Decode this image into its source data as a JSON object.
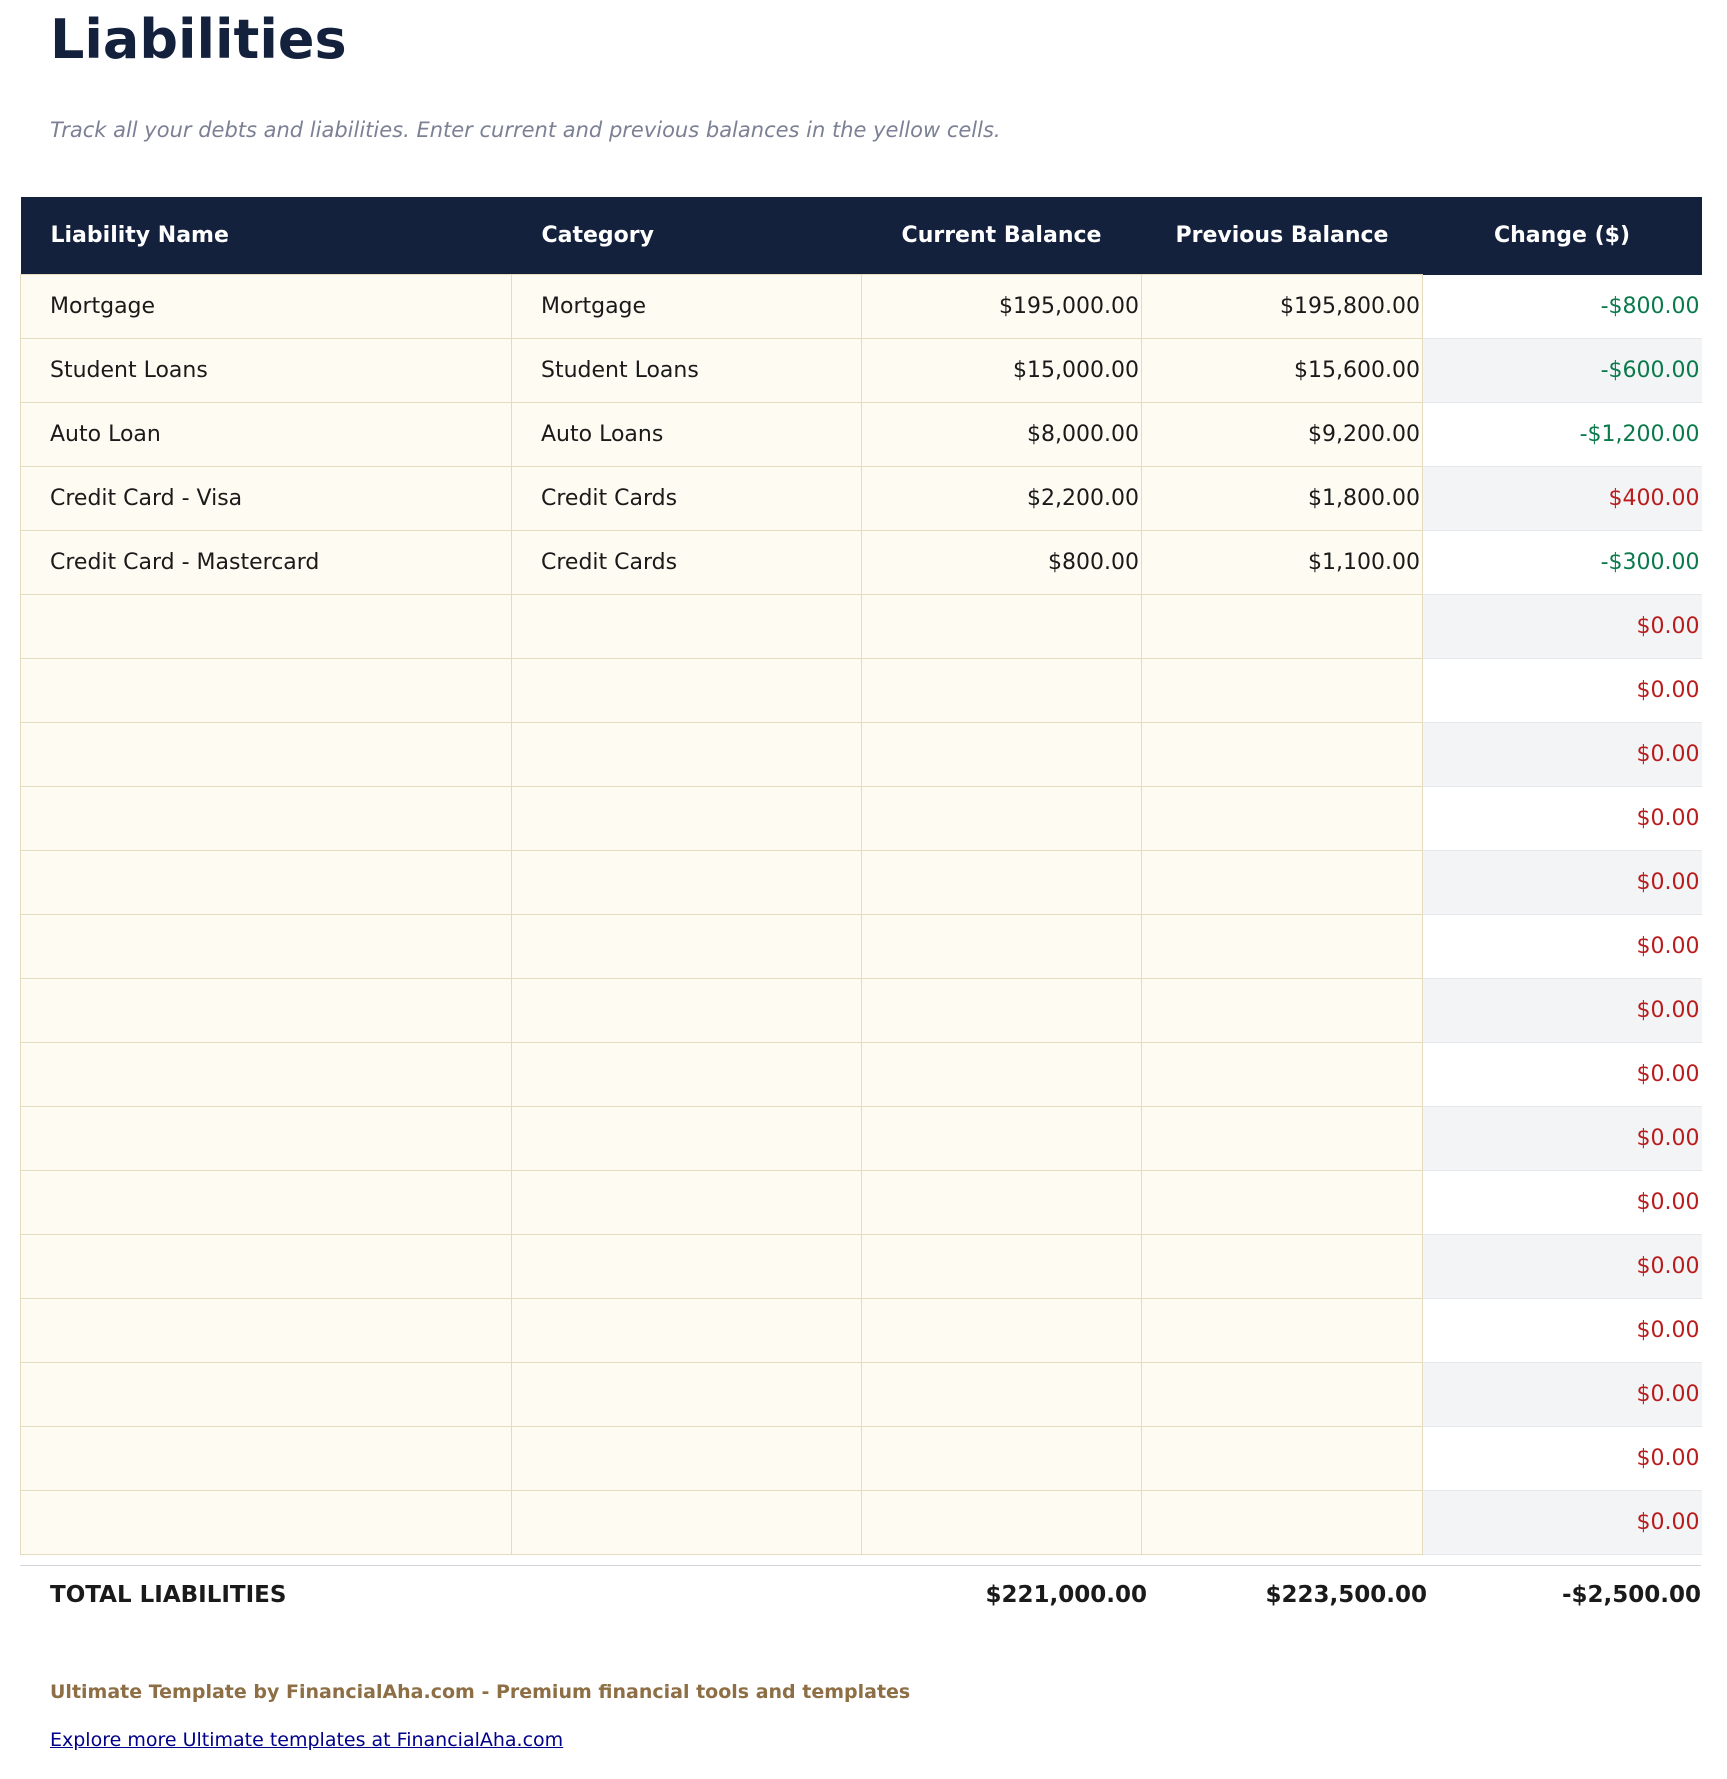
{
  "title": "Liabilities",
  "subtitle": "Track all your debts and liabilities. Enter current and previous balances in the yellow cells.",
  "columns": [
    "Liability Name",
    "Category",
    "Current Balance",
    "Previous Balance",
    "Change ($)"
  ],
  "rows": [
    {
      "name": "Mortgage",
      "category": "Mortgage",
      "current": "$195,000.00",
      "previous": "$195,800.00",
      "change": "-$800.00",
      "trend": "neg"
    },
    {
      "name": "Student Loans",
      "category": "Student Loans",
      "current": "$15,000.00",
      "previous": "$15,600.00",
      "change": "-$600.00",
      "trend": "neg"
    },
    {
      "name": "Auto Loan",
      "category": "Auto Loans",
      "current": "$8,000.00",
      "previous": "$9,200.00",
      "change": "-$1,200.00",
      "trend": "neg"
    },
    {
      "name": "Credit Card - Visa",
      "category": "Credit Cards",
      "current": "$2,200.00",
      "previous": "$1,800.00",
      "change": "$400.00",
      "trend": "pos"
    },
    {
      "name": "Credit Card - Mastercard",
      "category": "Credit Cards",
      "current": "$800.00",
      "previous": "$1,100.00",
      "change": "-$300.00",
      "trend": "neg"
    },
    {
      "name": "",
      "category": "",
      "current": "",
      "previous": "",
      "change": "$0.00",
      "trend": "pos"
    },
    {
      "name": "",
      "category": "",
      "current": "",
      "previous": "",
      "change": "$0.00",
      "trend": "pos"
    },
    {
      "name": "",
      "category": "",
      "current": "",
      "previous": "",
      "change": "$0.00",
      "trend": "pos"
    },
    {
      "name": "",
      "category": "",
      "current": "",
      "previous": "",
      "change": "$0.00",
      "trend": "pos"
    },
    {
      "name": "",
      "category": "",
      "current": "",
      "previous": "",
      "change": "$0.00",
      "trend": "pos"
    },
    {
      "name": "",
      "category": "",
      "current": "",
      "previous": "",
      "change": "$0.00",
      "trend": "pos"
    },
    {
      "name": "",
      "category": "",
      "current": "",
      "previous": "",
      "change": "$0.00",
      "trend": "pos"
    },
    {
      "name": "",
      "category": "",
      "current": "",
      "previous": "",
      "change": "$0.00",
      "trend": "pos"
    },
    {
      "name": "",
      "category": "",
      "current": "",
      "previous": "",
      "change": "$0.00",
      "trend": "pos"
    },
    {
      "name": "",
      "category": "",
      "current": "",
      "previous": "",
      "change": "$0.00",
      "trend": "pos"
    },
    {
      "name": "",
      "category": "",
      "current": "",
      "previous": "",
      "change": "$0.00",
      "trend": "pos"
    },
    {
      "name": "",
      "category": "",
      "current": "",
      "previous": "",
      "change": "$0.00",
      "trend": "pos"
    },
    {
      "name": "",
      "category": "",
      "current": "",
      "previous": "",
      "change": "$0.00",
      "trend": "pos"
    },
    {
      "name": "",
      "category": "",
      "current": "",
      "previous": "",
      "change": "$0.00",
      "trend": "pos"
    },
    {
      "name": "",
      "category": "",
      "current": "",
      "previous": "",
      "change": "$0.00",
      "trend": "pos"
    }
  ],
  "totals": {
    "label": "TOTAL LIABILITIES",
    "current": "$221,000.00",
    "previous": "$223,500.00",
    "change": "-$2,500.00"
  },
  "footer": {
    "credit": "Ultimate Template by FinancialAha.com - Premium financial tools and templates",
    "link": "Explore more Ultimate templates at FinancialAha.com"
  },
  "colors": {
    "header_bg": "#14213d",
    "input_cell": "#fefbf2",
    "decrease": "#0b7a4b",
    "increase": "#b91c1c",
    "footer": "#8d6e45"
  }
}
